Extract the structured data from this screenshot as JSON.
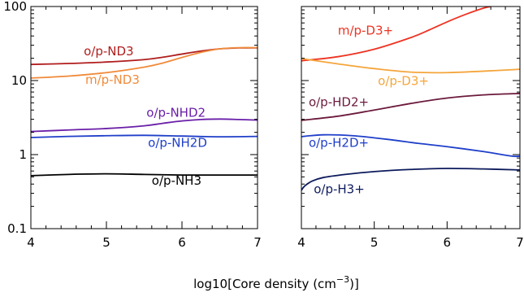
{
  "chart_data": [
    {
      "type": "line",
      "title": "",
      "xlabel_prefix": "log10[Core density (cm",
      "xlabel_sup": "−3",
      "xlabel_suffix": ")]",
      "ylabel": "",
      "xlim": [
        4,
        7
      ],
      "ylim": [
        0.1,
        100
      ],
      "yscale": "log",
      "xticks": [
        "4",
        "5",
        "6",
        "7"
      ],
      "yticks": [
        {
          "value": 0.1,
          "label": "0.1"
        },
        {
          "value": 1,
          "label": "1"
        },
        {
          "value": 10,
          "label": "10"
        },
        {
          "value": 100,
          "label": "100"
        }
      ],
      "series": [
        {
          "name": "o/p-ND3",
          "color": "#b01d1d",
          "x": [
            4.0,
            4.5,
            5.0,
            5.5,
            5.75,
            6.0,
            6.25,
            6.5,
            6.75,
            7.0
          ],
          "y": [
            16.5,
            17.0,
            17.8,
            19.2,
            20.7,
            22.8,
            25.0,
            26.8,
            27.6,
            27.6
          ],
          "label": {
            "x": 4.7,
            "y": 22
          }
        },
        {
          "name": "m/p-ND3",
          "color": "#f08a3a",
          "x": [
            4.0,
            4.5,
            5.0,
            5.5,
            5.75,
            6.0,
            6.25,
            6.5,
            6.75,
            7.0
          ],
          "y": [
            10.8,
            11.5,
            12.8,
            15.2,
            17.3,
            20.5,
            24.0,
            26.8,
            27.8,
            27.8
          ],
          "label": {
            "x": 4.72,
            "y": 9.0
          }
        },
        {
          "name": "o/p-NHD2",
          "color": "#6a1fa8",
          "x": [
            4.0,
            4.5,
            5.0,
            5.5,
            5.75,
            6.0,
            6.25,
            6.5,
            6.75,
            7.0
          ],
          "y": [
            2.05,
            2.15,
            2.25,
            2.45,
            2.65,
            2.85,
            2.98,
            3.02,
            2.98,
            2.92
          ],
          "label": {
            "x": 5.53,
            "y": 3.25
          }
        },
        {
          "name": "o/p-NH2D",
          "color": "#1f3fc9",
          "x": [
            4.0,
            4.5,
            5.0,
            5.5,
            6.0,
            6.5,
            7.0
          ],
          "y": [
            1.7,
            1.76,
            1.8,
            1.82,
            1.78,
            1.74,
            1.76
          ],
          "label": {
            "x": 5.55,
            "y": 1.27
          }
        },
        {
          "name": "o/p-NH3",
          "color": "#000000",
          "x": [
            4.0,
            4.5,
            5.0,
            5.5,
            6.0,
            6.5,
            7.0
          ],
          "y": [
            0.52,
            0.54,
            0.55,
            0.54,
            0.53,
            0.53,
            0.53
          ],
          "label": {
            "x": 5.6,
            "y": 0.39
          }
        }
      ]
    },
    {
      "type": "line",
      "title": "",
      "xlabel": "",
      "ylabel": "",
      "xlim": [
        4,
        7
      ],
      "ylim": [
        0.1,
        100
      ],
      "yscale": "log",
      "xticks": [
        "4",
        "5",
        "6",
        "7"
      ],
      "series": [
        {
          "name": "m/p-D3+",
          "color": "#ee3322",
          "x": [
            4.0,
            4.5,
            5.0,
            5.5,
            5.75,
            6.0,
            6.25,
            6.5,
            6.6
          ],
          "y": [
            18.5,
            21.0,
            26.5,
            38.0,
            48.0,
            62.0,
            78.0,
            95.0,
            100
          ],
          "label": {
            "x": 4.5,
            "y": 42
          }
        },
        {
          "name": "o/p-D3+",
          "color": "#f5a53c",
          "x": [
            4.0,
            4.5,
            5.0,
            5.5,
            6.0,
            6.5,
            7.0
          ],
          "y": [
            19.8,
            16.8,
            14.5,
            13.0,
            12.8,
            13.4,
            14.2
          ],
          "label": {
            "x": 5.05,
            "y": 8.7
          }
        },
        {
          "name": "o/p-HD2+",
          "color": "#6b1a3c",
          "x": [
            4.0,
            4.5,
            5.0,
            5.5,
            6.0,
            6.5,
            7.0
          ],
          "y": [
            2.9,
            3.3,
            4.0,
            4.9,
            5.8,
            6.4,
            6.7
          ],
          "label": {
            "x": 4.1,
            "y": 4.5
          }
        },
        {
          "name": "o/p-H2D+",
          "color": "#1f3fc9",
          "x": [
            4.0,
            4.3,
            4.7,
            5.2,
            5.6,
            6.0,
            6.5,
            6.75,
            6.9,
            7.0
          ],
          "y": [
            1.75,
            1.85,
            1.8,
            1.6,
            1.42,
            1.28,
            1.1,
            1.0,
            0.95,
            0.95
          ],
          "label": {
            "x": 4.1,
            "y": 1.27
          }
        },
        {
          "name": "o/p-H3+",
          "color": "#0d1a5c",
          "x": [
            4.0,
            4.05,
            4.15,
            4.3,
            4.6,
            5.0,
            5.5,
            6.0,
            6.5,
            7.0
          ],
          "y": [
            0.33,
            0.38,
            0.44,
            0.49,
            0.54,
            0.59,
            0.63,
            0.65,
            0.64,
            0.62
          ],
          "label": {
            "x": 4.17,
            "y": 0.3
          }
        }
      ]
    }
  ]
}
